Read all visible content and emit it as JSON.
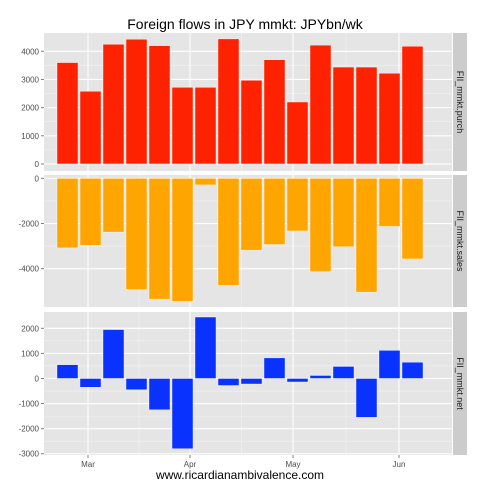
{
  "chart_data": {
    "type": "bar",
    "title": "Foreign flows in JPY mmkt: JPYbn/wk",
    "caption": "www.ricardianambivalence.com",
    "xlabel": "",
    "ylabel": "",
    "grid": true,
    "x_tick_labels": [
      "Mar",
      "Apr",
      "May",
      "Jun"
    ],
    "weeks": 17,
    "colors": {
      "panel_bg": "#e5e5e5",
      "grid_major": "#ffffff",
      "grid_minor": "#f2f2f2",
      "strip_bg": "#cccccc",
      "tick_mark": "#7f7f7f"
    },
    "panels": [
      {
        "name": "FII_mmkt.purch",
        "color": "#ff2200",
        "ylim": [
          -250,
          4650
        ],
        "y_ticks": [
          0,
          1000,
          2000,
          3000,
          4000
        ],
        "y_tick_labels": [
          "0",
          "1000",
          "2000",
          "3000",
          "4000"
        ],
        "values": [
          3600,
          2580,
          4250,
          4430,
          4200,
          2720,
          2720,
          4440,
          2970,
          3700,
          2200,
          4220,
          3440,
          3440,
          3220,
          4180,
          0
        ]
      },
      {
        "name": "FII_mmkt.sales",
        "color": "#ffa500",
        "ylim": [
          -5700,
          150
        ],
        "y_ticks": [
          0,
          -2000,
          -4000
        ],
        "y_tick_labels": [
          "0",
          "-2000",
          "-4000"
        ],
        "values": [
          -3080,
          -2960,
          -2380,
          -4930,
          -5350,
          -5450,
          -290,
          -4740,
          -3180,
          -2930,
          -2330,
          -4130,
          -3030,
          -5040,
          -2130,
          -3570,
          0
        ]
      },
      {
        "name": "FII_mmkt.net",
        "color": "#0a32ff",
        "ylim": [
          -3050,
          2650
        ],
        "y_ticks": [
          2000,
          1000,
          0,
          -1000,
          -2000,
          -3000
        ],
        "y_tick_labels": [
          "2000",
          "1000",
          "0",
          "-1000",
          "-2000",
          "-3000"
        ],
        "values": [
          550,
          -350,
          1950,
          -450,
          -1250,
          -2800,
          2450,
          -280,
          -220,
          820,
          -140,
          120,
          480,
          -1550,
          1120,
          650,
          0
        ]
      }
    ]
  }
}
